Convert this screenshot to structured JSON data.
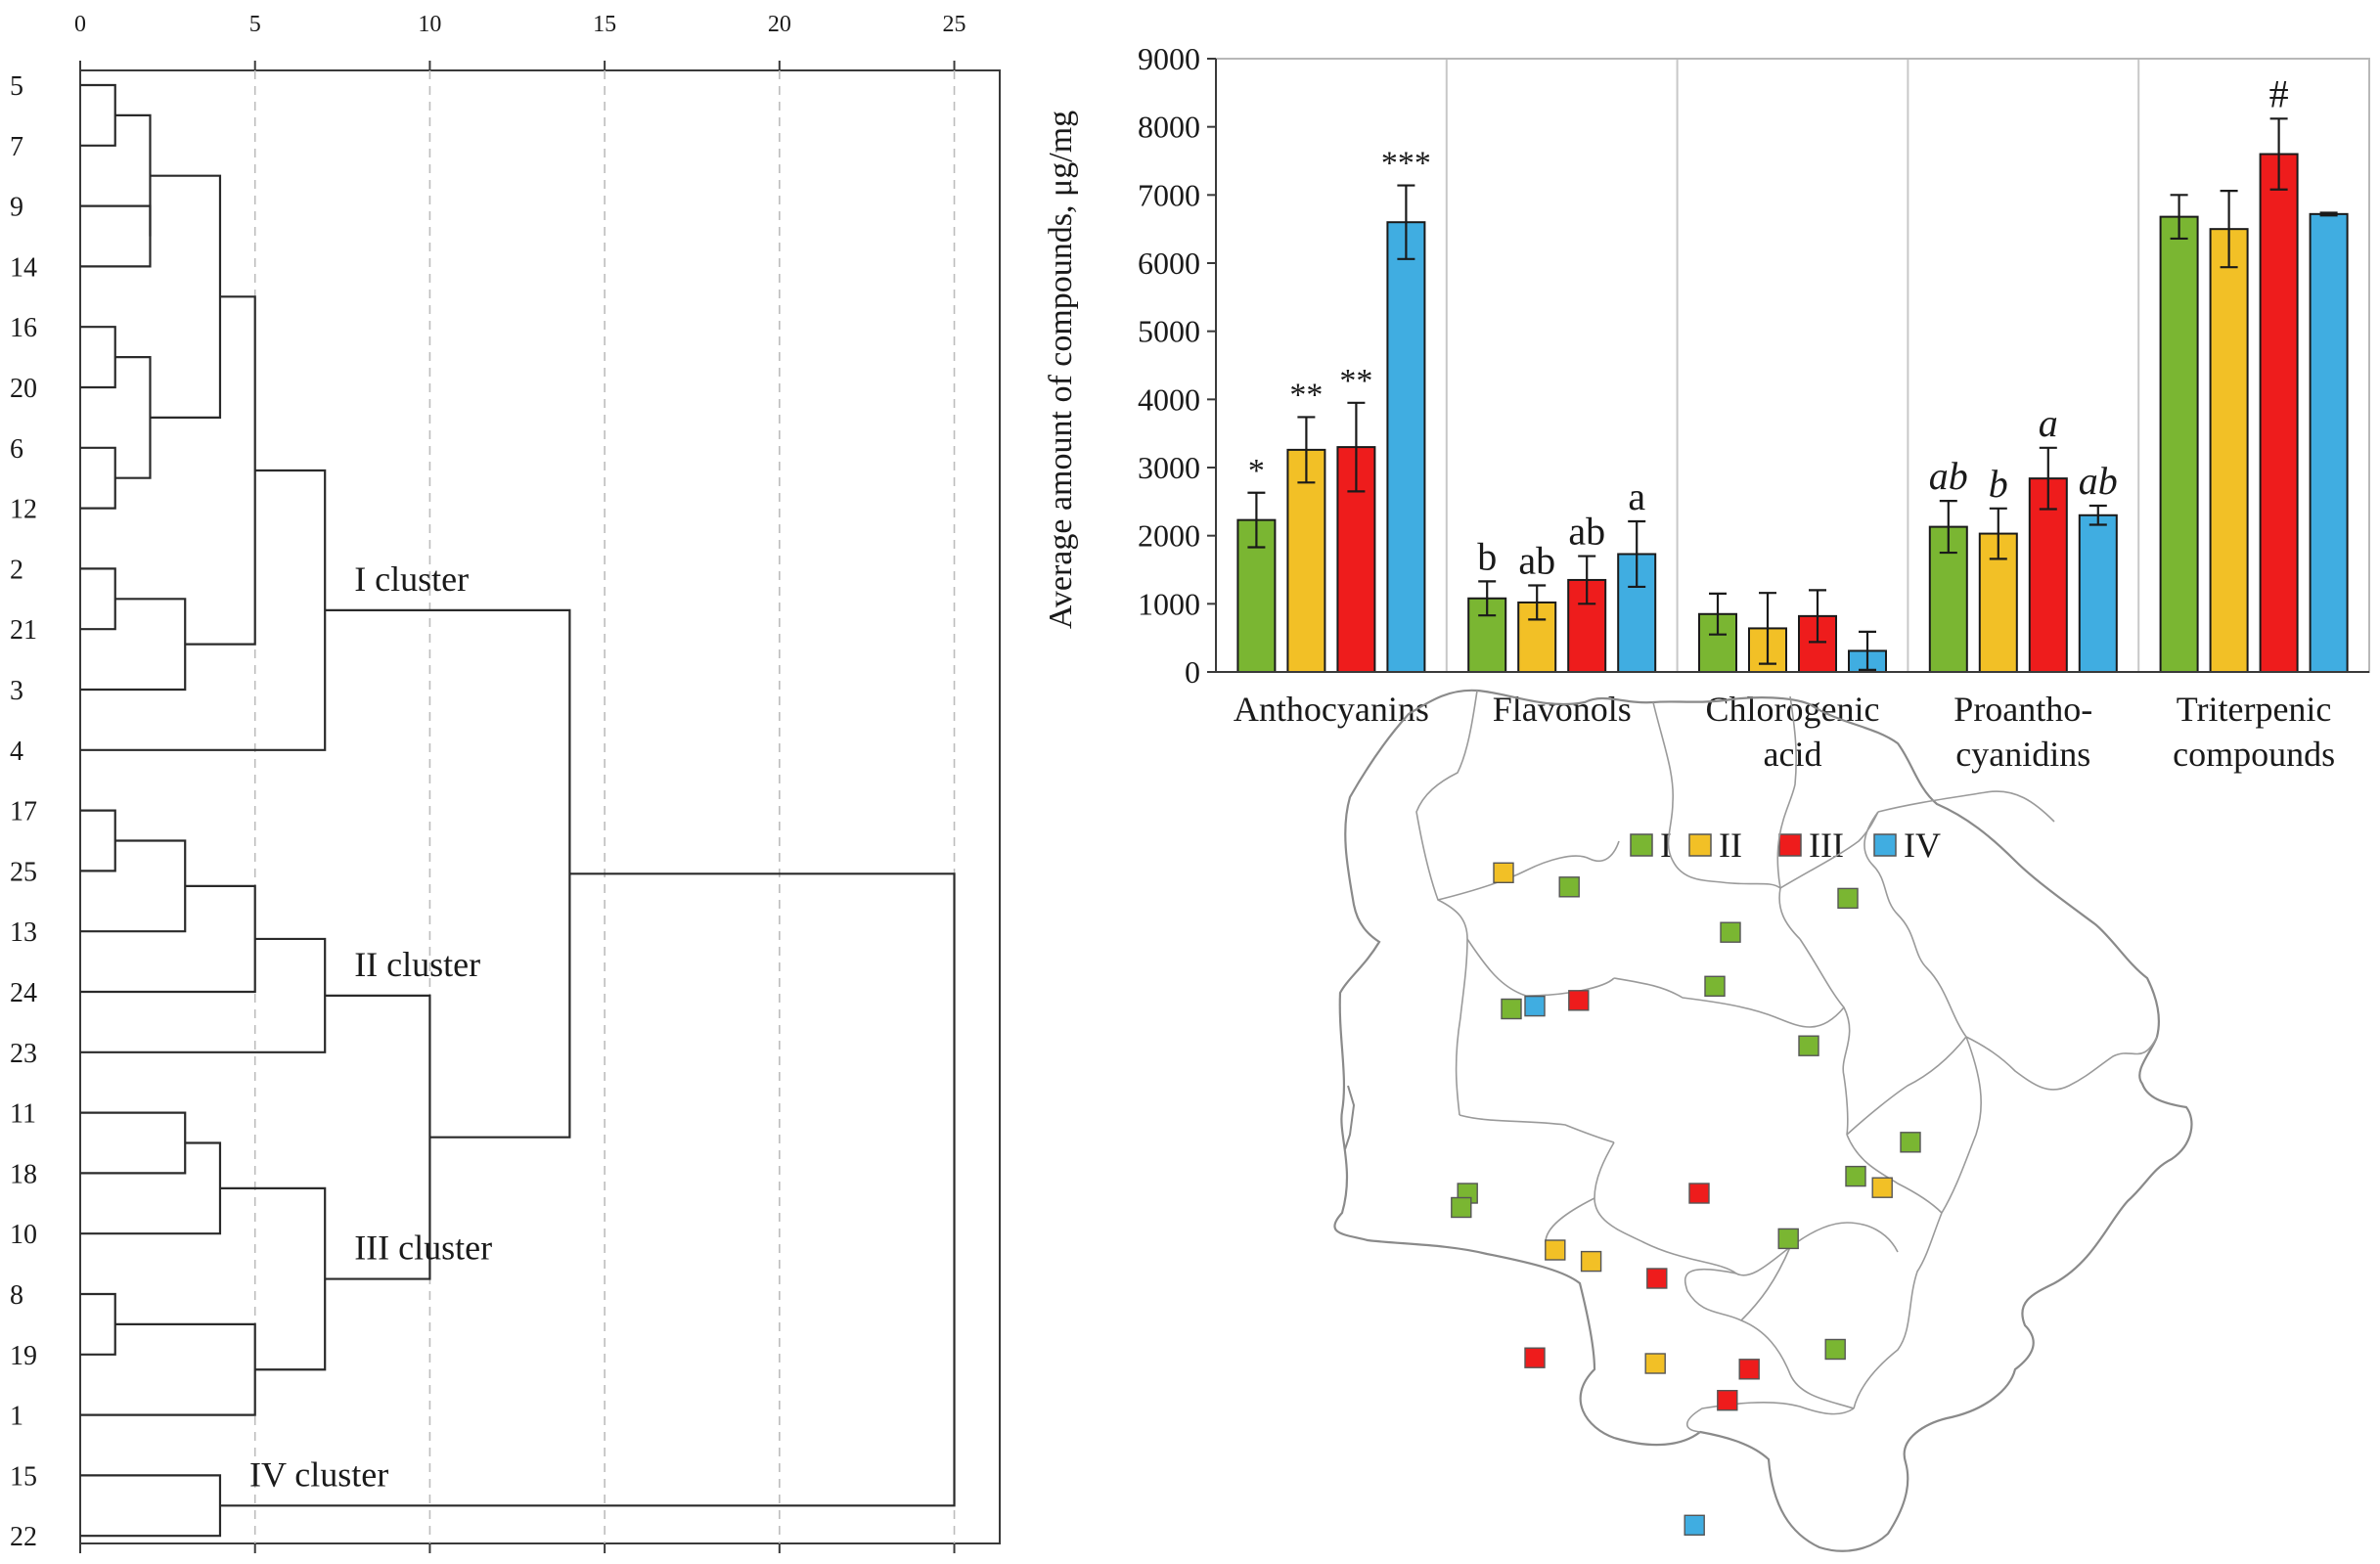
{
  "colors": {
    "I": "#7ab632",
    "II": "#f2c026",
    "III": "#ee1c1c",
    "IV": "#40ade1",
    "axis": "#3a3a3a",
    "grid": "#c8c8c8",
    "map_outline": "#8a8a8a"
  },
  "chart_data": [
    {
      "type": "dendrogram",
      "x_ticks": [
        0,
        5,
        10,
        15,
        20,
        25
      ],
      "xlim": [
        0,
        26.3
      ],
      "leaves": [
        "5",
        "7",
        "9",
        "14",
        "16",
        "20",
        "6",
        "12",
        "2",
        "21",
        "3",
        "4",
        "17",
        "25",
        "13",
        "24",
        "23",
        "11",
        "18",
        "10",
        "8",
        "19",
        "1",
        "15",
        "22"
      ],
      "merges": [
        {
          "a": "L:5",
          "b": "L:7",
          "d": 1
        },
        {
          "a": "L:16",
          "b": "L:20",
          "d": 1
        },
        {
          "a": "L:6",
          "b": "L:12",
          "d": 1
        },
        {
          "a": "L:2",
          "b": "L:21",
          "d": 1
        },
        {
          "a": "L:17",
          "b": "L:25",
          "d": 1
        },
        {
          "a": "L:8",
          "b": "L:19",
          "d": 1
        },
        {
          "a": "L:9",
          "b": "L:14",
          "d": 2
        },
        {
          "a": "M:0",
          "b": "M:6",
          "d": 2
        },
        {
          "a": "M:1",
          "b": "M:2",
          "d": 2
        },
        {
          "a": "L:11",
          "b": "L:18",
          "d": 3
        },
        {
          "a": "M:3",
          "b": "L:3",
          "d": 3
        },
        {
          "a": "M:4",
          "b": "L:13",
          "d": 3
        },
        {
          "a": "M:7",
          "b": "M:8",
          "d": 4
        },
        {
          "a": "M:9",
          "b": "L:10",
          "d": 4
        },
        {
          "a": "L:15",
          "b": "L:22",
          "d": 4
        },
        {
          "a": "M:12",
          "b": "M:10",
          "d": 5
        },
        {
          "a": "M:11",
          "b": "L:24",
          "d": 5
        },
        {
          "a": "M:5",
          "b": "L:1",
          "d": 5
        },
        {
          "a": "M:15",
          "b": "L:4",
          "d": 7
        },
        {
          "a": "M:16",
          "b": "L:23",
          "d": 7
        },
        {
          "a": "M:13",
          "b": "M:17",
          "d": 7
        },
        {
          "a": "M:19",
          "b": "M:20",
          "d": 10
        },
        {
          "a": "M:18",
          "b": "M:21",
          "d": 14
        },
        {
          "a": "M:22",
          "b": "M:14",
          "d": 25
        }
      ],
      "cluster_labels": [
        {
          "text": "I cluster",
          "at_merge": 18
        },
        {
          "text": "II cluster",
          "at_merge": 19
        },
        {
          "text": "III cluster",
          "at_merge": 20
        },
        {
          "text": "IV cluster",
          "at_merge": 14
        }
      ]
    },
    {
      "type": "bar",
      "ylabel": "Average amount of compounds, μg/mg",
      "ylim": [
        0,
        9000
      ],
      "yticks": [
        0,
        1000,
        2000,
        3000,
        4000,
        5000,
        6000,
        7000,
        8000,
        9000
      ],
      "grid": false,
      "categories": [
        [
          "Anthocyanins"
        ],
        [
          "Flavonols"
        ],
        [
          "Chlorogenic",
          "acid"
        ],
        [
          "Proantho-",
          "cyanidins"
        ],
        [
          "Triterpenic",
          "compounds"
        ]
      ],
      "series": [
        {
          "name": "I",
          "values": [
            2230,
            1080,
            850,
            2130,
            6680
          ],
          "errors": [
            400,
            250,
            300,
            380,
            320
          ],
          "labels": [
            {
              "t": "*",
              "i": false
            },
            {
              "t": "b",
              "i": false
            },
            null,
            {
              "t": "ab",
              "i": true
            },
            null
          ]
        },
        {
          "name": "II",
          "values": [
            3260,
            1020,
            640,
            2030,
            6500
          ],
          "errors": [
            480,
            250,
            520,
            370,
            560
          ],
          "labels": [
            {
              "t": "**",
              "i": false
            },
            {
              "t": "ab",
              "i": false
            },
            null,
            {
              "t": "b",
              "i": true
            },
            null
          ]
        },
        {
          "name": "III",
          "values": [
            3300,
            1350,
            820,
            2840,
            7600
          ],
          "errors": [
            650,
            350,
            380,
            450,
            520
          ],
          "labels": [
            {
              "t": "**",
              "i": false
            },
            {
              "t": "ab",
              "i": false
            },
            null,
            {
              "t": "a",
              "i": true
            },
            {
              "t": "#",
              "i": false
            }
          ]
        },
        {
          "name": "IV",
          "values": [
            6600,
            1730,
            310,
            2300,
            6720
          ],
          "errors": [
            540,
            480,
            280,
            140,
            20
          ],
          "labels": [
            {
              "t": "***",
              "i": false
            },
            {
              "t": "a",
              "i": false
            },
            null,
            {
              "t": "ab",
              "i": true
            },
            null
          ]
        }
      ]
    }
  ],
  "legend": [
    {
      "key": "I",
      "label": "I"
    },
    {
      "key": "II",
      "label": "II"
    },
    {
      "key": "III",
      "label": "III"
    },
    {
      "key": "IV",
      "label": "IV"
    }
  ],
  "map": {
    "sites": [
      {
        "c": "II",
        "lon": 21.95,
        "lat": 56.33
      },
      {
        "c": "I",
        "lon": 22.37,
        "lat": 56.28
      },
      {
        "c": "I",
        "lon": 23.4,
        "lat": 56.12
      },
      {
        "c": "I",
        "lon": 24.15,
        "lat": 56.24
      },
      {
        "c": "I",
        "lon": 22.0,
        "lat": 55.85
      },
      {
        "c": "IV",
        "lon": 22.15,
        "lat": 55.86
      },
      {
        "c": "III",
        "lon": 22.43,
        "lat": 55.88
      },
      {
        "c": "I",
        "lon": 23.3,
        "lat": 55.93
      },
      {
        "c": "I",
        "lon": 23.9,
        "lat": 55.72
      },
      {
        "c": "I",
        "lon": 24.55,
        "lat": 55.38
      },
      {
        "c": "I",
        "lon": 24.2,
        "lat": 55.26
      },
      {
        "c": "II",
        "lon": 24.37,
        "lat": 55.22
      },
      {
        "c": "III",
        "lon": 23.2,
        "lat": 55.2
      },
      {
        "c": "I",
        "lon": 23.77,
        "lat": 55.04
      },
      {
        "c": "I",
        "lon": 21.72,
        "lat": 55.2
      },
      {
        "c": "I",
        "lon": 21.68,
        "lat": 55.15
      },
      {
        "c": "II",
        "lon": 22.28,
        "lat": 55.0
      },
      {
        "c": "II",
        "lon": 22.51,
        "lat": 54.96
      },
      {
        "c": "III",
        "lon": 22.93,
        "lat": 54.9
      },
      {
        "c": "I",
        "lon": 24.07,
        "lat": 54.65
      },
      {
        "c": "III",
        "lon": 22.15,
        "lat": 54.62
      },
      {
        "c": "II",
        "lon": 22.92,
        "lat": 54.6
      },
      {
        "c": "III",
        "lon": 23.52,
        "lat": 54.58
      },
      {
        "c": "III",
        "lon": 23.38,
        "lat": 54.47
      },
      {
        "c": "IV",
        "lon": 23.17,
        "lat": 54.03
      }
    ]
  }
}
